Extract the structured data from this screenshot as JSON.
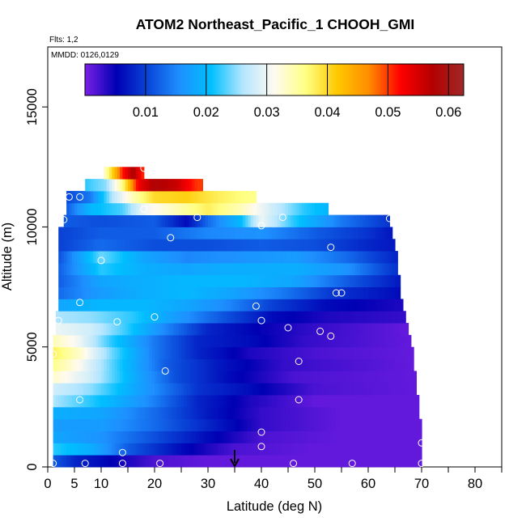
{
  "chart_data": {
    "type": "heatmap",
    "title": "ATOM2 Northeast_Pacific_1 CHOOH_GMI",
    "flights_note": "Flts: 1,2",
    "dates_note": "MMDD: 0126,0129",
    "xlabel": "Latitude (deg N)",
    "ylabel": "Altitude (m)",
    "xlim": [
      0,
      85
    ],
    "ylim": [
      0,
      17500
    ],
    "x_ticks": [
      0,
      5,
      10,
      20,
      30,
      40,
      50,
      60,
      70,
      80
    ],
    "x_minor_ticks": [
      15,
      25,
      35,
      45,
      55,
      65,
      75,
      85
    ],
    "y_ticks": [
      0,
      5000,
      10000,
      15000
    ],
    "colorbar": {
      "min": 0.0,
      "max": 0.0625,
      "ticks": [
        0.01,
        0.02,
        0.03,
        0.04,
        0.05,
        0.06
      ],
      "tick_labels": [
        "0.01",
        "0.02",
        "0.03",
        "0.04",
        "0.05",
        "0.06"
      ],
      "colors": [
        "#7a1fe6",
        "#0000b4",
        "#0a46d8",
        "#1e90ff",
        "#00bfff",
        "#b4e6ff",
        "#fffaf0",
        "#ffff82",
        "#ffc800",
        "#ff8c00",
        "#ff0000",
        "#b40000",
        "#a02828"
      ]
    },
    "arrow_latitude": 35,
    "levels": [
      {
        "alt": 250,
        "x0": 1,
        "x1": 70,
        "stops": [
          [
            1,
            0.012
          ],
          [
            5,
            0.008
          ],
          [
            10,
            0.006
          ],
          [
            20,
            0.002
          ],
          [
            30,
            0.001
          ],
          [
            70,
            0.001
          ]
        ]
      },
      {
        "alt": 750,
        "x0": 1,
        "x1": 70,
        "stops": [
          [
            1,
            0.022
          ],
          [
            8,
            0.019
          ],
          [
            15,
            0.012
          ],
          [
            25,
            0.006
          ],
          [
            35,
            0.002
          ],
          [
            50,
            0.001
          ],
          [
            70,
            0.001
          ]
        ]
      },
      {
        "alt": 1250,
        "x0": 1,
        "x1": 70,
        "stops": [
          [
            1,
            0.018
          ],
          [
            10,
            0.016
          ],
          [
            20,
            0.011
          ],
          [
            30,
            0.006
          ],
          [
            40,
            0.002
          ],
          [
            55,
            0.001
          ],
          [
            70,
            0.001
          ]
        ]
      },
      {
        "alt": 1750,
        "x0": 1,
        "x1": 70,
        "stops": [
          [
            1,
            0.017
          ],
          [
            10,
            0.017
          ],
          [
            20,
            0.013
          ],
          [
            30,
            0.008
          ],
          [
            40,
            0.003
          ],
          [
            55,
            0.001
          ],
          [
            70,
            0.001
          ]
        ]
      },
      {
        "alt": 2250,
        "x0": 1,
        "x1": 69.5,
        "stops": [
          [
            1,
            0.019
          ],
          [
            10,
            0.018
          ],
          [
            20,
            0.013
          ],
          [
            30,
            0.007
          ],
          [
            40,
            0.003
          ],
          [
            55,
            0.001
          ],
          [
            69,
            0.001
          ]
        ]
      },
      {
        "alt": 2750,
        "x0": 1,
        "x1": 69.5,
        "stops": [
          [
            1,
            0.026
          ],
          [
            8,
            0.022
          ],
          [
            18,
            0.016
          ],
          [
            28,
            0.008
          ],
          [
            38,
            0.004
          ],
          [
            50,
            0.001
          ],
          [
            69,
            0.001
          ]
        ]
      },
      {
        "alt": 3250,
        "x0": 1,
        "x1": 69,
        "stops": [
          [
            1,
            0.028
          ],
          [
            8,
            0.025
          ],
          [
            18,
            0.017
          ],
          [
            28,
            0.009
          ],
          [
            38,
            0.006
          ],
          [
            50,
            0.002
          ],
          [
            69,
            0.001
          ]
        ]
      },
      {
        "alt": 3750,
        "x0": 1,
        "x1": 69,
        "stops": [
          [
            1,
            0.033
          ],
          [
            8,
            0.028
          ],
          [
            16,
            0.019
          ],
          [
            24,
            0.011
          ],
          [
            34,
            0.006
          ],
          [
            46,
            0.002
          ],
          [
            69,
            0.001
          ]
        ]
      },
      {
        "alt": 4250,
        "x0": 1,
        "x1": 68.5,
        "stops": [
          [
            1,
            0.036
          ],
          [
            6,
            0.031
          ],
          [
            14,
            0.021
          ],
          [
            22,
            0.012
          ],
          [
            32,
            0.007
          ],
          [
            44,
            0.003
          ],
          [
            68,
            0.001
          ]
        ]
      },
      {
        "alt": 4750,
        "x0": 1,
        "x1": 68.5,
        "stops": [
          [
            1,
            0.038
          ],
          [
            6,
            0.033
          ],
          [
            12,
            0.024
          ],
          [
            20,
            0.014
          ],
          [
            28,
            0.008
          ],
          [
            38,
            0.004
          ],
          [
            50,
            0.002
          ],
          [
            68,
            0.001
          ]
        ]
      },
      {
        "alt": 5250,
        "x0": 1,
        "x1": 68,
        "stops": [
          [
            1,
            0.034
          ],
          [
            6,
            0.03
          ],
          [
            12,
            0.022
          ],
          [
            20,
            0.014
          ],
          [
            28,
            0.008
          ],
          [
            38,
            0.006
          ],
          [
            48,
            0.003
          ],
          [
            68,
            0.001
          ]
        ]
      },
      {
        "alt": 5750,
        "x0": 1.5,
        "x1": 67.5,
        "stops": [
          [
            1,
            0.03
          ],
          [
            8,
            0.028
          ],
          [
            14,
            0.023
          ],
          [
            22,
            0.015
          ],
          [
            30,
            0.008
          ],
          [
            40,
            0.005
          ],
          [
            50,
            0.003
          ],
          [
            67,
            0.001
          ]
        ]
      },
      {
        "alt": 6250,
        "x0": 1.5,
        "x1": 67,
        "stops": [
          [
            1,
            0.026
          ],
          [
            8,
            0.025
          ],
          [
            16,
            0.022
          ],
          [
            24,
            0.017
          ],
          [
            32,
            0.012
          ],
          [
            42,
            0.006
          ],
          [
            52,
            0.004
          ],
          [
            66,
            0.003
          ]
        ]
      },
      {
        "alt": 6750,
        "x0": 2,
        "x1": 66.5,
        "stops": [
          [
            2,
            0.018
          ],
          [
            10,
            0.02
          ],
          [
            18,
            0.02
          ],
          [
            26,
            0.018
          ],
          [
            34,
            0.015
          ],
          [
            42,
            0.01
          ],
          [
            52,
            0.006
          ],
          [
            66,
            0.004
          ]
        ]
      },
      {
        "alt": 7250,
        "x0": 2,
        "x1": 66,
        "stops": [
          [
            2,
            0.013
          ],
          [
            10,
            0.017
          ],
          [
            18,
            0.019
          ],
          [
            26,
            0.02
          ],
          [
            34,
            0.018
          ],
          [
            44,
            0.014
          ],
          [
            54,
            0.009
          ],
          [
            66,
            0.006
          ]
        ]
      },
      {
        "alt": 7750,
        "x0": 2,
        "x1": 66,
        "stops": [
          [
            2,
            0.012
          ],
          [
            10,
            0.018
          ],
          [
            18,
            0.019
          ],
          [
            26,
            0.02
          ],
          [
            36,
            0.02
          ],
          [
            46,
            0.018
          ],
          [
            56,
            0.012
          ],
          [
            66,
            0.007
          ]
        ]
      },
      {
        "alt": 8250,
        "x0": 2,
        "x1": 65.5,
        "stops": [
          [
            2,
            0.012
          ],
          [
            10,
            0.022
          ],
          [
            18,
            0.019
          ],
          [
            26,
            0.018
          ],
          [
            36,
            0.019
          ],
          [
            46,
            0.019
          ],
          [
            56,
            0.016
          ],
          [
            65,
            0.009
          ]
        ]
      },
      {
        "alt": 8750,
        "x0": 2,
        "x1": 65.5,
        "stops": [
          [
            2,
            0.011
          ],
          [
            10,
            0.024
          ],
          [
            18,
            0.018
          ],
          [
            26,
            0.015
          ],
          [
            36,
            0.016
          ],
          [
            46,
            0.017
          ],
          [
            56,
            0.013
          ],
          [
            65,
            0.008
          ]
        ]
      },
      {
        "alt": 9250,
        "x0": 2,
        "x1": 65,
        "stops": [
          [
            2,
            0.01
          ],
          [
            10,
            0.013
          ],
          [
            20,
            0.011
          ],
          [
            30,
            0.011
          ],
          [
            40,
            0.012
          ],
          [
            50,
            0.011
          ],
          [
            60,
            0.008
          ],
          [
            65,
            0.007
          ]
        ]
      },
      {
        "alt": 9750,
        "x0": 2,
        "x1": 64.5,
        "stops": [
          [
            2,
            0.01
          ],
          [
            10,
            0.012
          ],
          [
            20,
            0.012
          ],
          [
            30,
            0.015
          ],
          [
            40,
            0.016
          ],
          [
            50,
            0.012
          ],
          [
            60,
            0.009
          ],
          [
            64,
            0.007
          ]
        ]
      },
      {
        "alt": 10250,
        "x0": 3,
        "x1": 64,
        "stops": [
          [
            3,
            0.012
          ],
          [
            10,
            0.011
          ],
          [
            20,
            0.012
          ],
          [
            26,
            0.006
          ],
          [
            30,
            0.013
          ],
          [
            36,
            0.02
          ],
          [
            40,
            0.03
          ],
          [
            46,
            0.022
          ],
          [
            55,
            0.014
          ],
          [
            64,
            0.009
          ]
        ]
      },
      {
        "alt": 10750,
        "x0": 3.5,
        "x1": 52.5,
        "stops": [
          [
            3,
            0.011
          ],
          [
            8,
            0.02
          ],
          [
            14,
            0.023
          ],
          [
            18,
            0.03
          ],
          [
            24,
            0.034
          ],
          [
            30,
            0.038
          ],
          [
            36,
            0.034
          ],
          [
            42,
            0.028
          ],
          [
            48,
            0.022
          ],
          [
            52,
            0.02
          ]
        ]
      },
      {
        "alt": 11250,
        "x0": 3.5,
        "x1": 39,
        "stops": [
          [
            3,
            0.01
          ],
          [
            8,
            0.014
          ],
          [
            12,
            0.026
          ],
          [
            16,
            0.034
          ],
          [
            20,
            0.04
          ],
          [
            26,
            0.041
          ],
          [
            32,
            0.038
          ],
          [
            38,
            0.036
          ]
        ]
      },
      {
        "alt": 11750,
        "x0": 7,
        "x1": 29,
        "stops": [
          [
            7,
            0.022
          ],
          [
            11,
            0.025
          ],
          [
            14,
            0.036
          ],
          [
            17,
            0.053
          ],
          [
            20,
            0.058
          ],
          [
            24,
            0.056
          ],
          [
            28,
            0.05
          ]
        ]
      },
      {
        "alt": 12250,
        "x0": 10.5,
        "x1": 18,
        "stops": [
          [
            10,
            0.03
          ],
          [
            12,
            0.04
          ],
          [
            14,
            0.051
          ],
          [
            16,
            0.058
          ],
          [
            18,
            0.05
          ]
        ]
      }
    ],
    "points": [
      [
        1,
        150
      ],
      [
        7,
        150
      ],
      [
        14,
        150
      ],
      [
        21,
        150
      ],
      [
        46,
        150
      ],
      [
        57,
        150
      ],
      [
        70,
        150
      ],
      [
        14,
        600
      ],
      [
        40,
        850
      ],
      [
        70,
        1000
      ],
      [
        40,
        1450
      ],
      [
        6,
        2800
      ],
      [
        47,
        2800
      ],
      [
        22,
        4000
      ],
      [
        47,
        4400
      ],
      [
        1,
        4700
      ],
      [
        2,
        6100
      ],
      [
        13,
        6050
      ],
      [
        20,
        6250
      ],
      [
        40,
        6100
      ],
      [
        45,
        5800
      ],
      [
        51,
        5650
      ],
      [
        53,
        5450
      ],
      [
        69,
        5150
      ],
      [
        6,
        6850
      ],
      [
        39,
        6700
      ],
      [
        54,
        7250
      ],
      [
        55,
        7250
      ],
      [
        10,
        8600
      ],
      [
        53,
        9150
      ],
      [
        23,
        9550
      ],
      [
        40,
        10050
      ],
      [
        44,
        10400
      ],
      [
        3,
        10300
      ],
      [
        28,
        10400
      ],
      [
        64,
        10350
      ],
      [
        4,
        11250
      ],
      [
        6,
        11250
      ],
      [
        18,
        10750
      ],
      [
        18,
        12450
      ]
    ]
  }
}
